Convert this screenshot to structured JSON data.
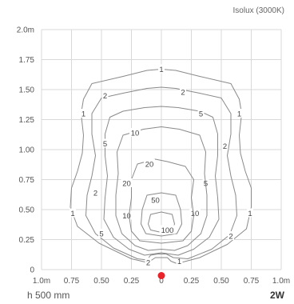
{
  "header": {
    "title": "Isolux (3000K)"
  },
  "footer": {
    "height_label": "h 500 mm",
    "power_label": "2W"
  },
  "chart_data": {
    "type": "contour",
    "title": "Isolux (3000K)",
    "x_ticks": [
      "1.0m",
      "0.75",
      "0.50",
      "0.25",
      "0",
      "0.25",
      "0.50",
      "0.75",
      "1.0m"
    ],
    "y_ticks": [
      "0",
      "0.25",
      "0.50",
      "0.75",
      "1.00",
      "1.25",
      "1.50",
      "1.75",
      "2.0m"
    ],
    "xlim": [
      -1.0,
      1.0
    ],
    "ylim": [
      0,
      2.0
    ],
    "grid": true,
    "source_point": {
      "x": 0,
      "y": -0.05,
      "color": "#e8232a"
    },
    "line_color": "#8a8a8a",
    "contours": [
      {
        "level": 1,
        "label": "1",
        "points": [
          [
            0,
            1.67
          ],
          [
            -0.12,
            1.66
          ],
          [
            -0.32,
            1.61
          ],
          [
            -0.58,
            1.55
          ],
          [
            -0.65,
            1.42
          ],
          [
            -0.67,
            1.3
          ],
          [
            -0.65,
            1.12
          ],
          [
            -0.66,
            0.97
          ],
          [
            -0.7,
            0.82
          ],
          [
            -0.75,
            0.68
          ],
          [
            -0.76,
            0.52
          ],
          [
            -0.7,
            0.36
          ],
          [
            -0.52,
            0.22
          ],
          [
            -0.25,
            0.09
          ],
          [
            -0.12,
            0.06
          ],
          [
            -0.08,
            0.08
          ],
          [
            -0.05,
            0.1
          ],
          [
            0.05,
            0.1
          ],
          [
            0.08,
            0.07
          ],
          [
            0.13,
            0.05
          ],
          [
            0.32,
            0.1
          ],
          [
            0.55,
            0.21
          ],
          [
            0.71,
            0.34
          ],
          [
            0.75,
            0.52
          ],
          [
            0.75,
            0.68
          ],
          [
            0.7,
            0.82
          ],
          [
            0.66,
            0.97
          ],
          [
            0.65,
            1.12
          ],
          [
            0.67,
            1.3
          ],
          [
            0.65,
            1.42
          ],
          [
            0.58,
            1.55
          ],
          [
            0.32,
            1.61
          ],
          [
            0.12,
            1.66
          ],
          [
            0,
            1.67
          ]
        ],
        "labels_at": [
          [
            0,
            1.67
          ],
          [
            -0.65,
            1.3
          ],
          [
            0.65,
            1.3
          ],
          [
            -0.74,
            0.47
          ],
          [
            0.74,
            0.47
          ],
          [
            0.15,
            0.07
          ]
        ]
      },
      {
        "level": 2,
        "label": "2",
        "points": [
          [
            0,
            1.52
          ],
          [
            -0.12,
            1.51
          ],
          [
            -0.32,
            1.47
          ],
          [
            -0.5,
            1.43
          ],
          [
            -0.58,
            1.3
          ],
          [
            -0.58,
            1.13
          ],
          [
            -0.55,
            0.95
          ],
          [
            -0.58,
            0.78
          ],
          [
            -0.62,
            0.62
          ],
          [
            -0.63,
            0.45
          ],
          [
            -0.55,
            0.3
          ],
          [
            -0.4,
            0.18
          ],
          [
            -0.2,
            0.09
          ],
          [
            -0.12,
            0.08
          ],
          [
            -0.09,
            0.12
          ],
          [
            -0.03,
            0.13
          ],
          [
            0.04,
            0.13
          ],
          [
            0.1,
            0.1
          ],
          [
            0.22,
            0.09
          ],
          [
            0.42,
            0.17
          ],
          [
            0.57,
            0.29
          ],
          [
            0.63,
            0.45
          ],
          [
            0.62,
            0.62
          ],
          [
            0.58,
            0.78
          ],
          [
            0.55,
            0.95
          ],
          [
            0.58,
            1.13
          ],
          [
            0.58,
            1.3
          ],
          [
            0.5,
            1.43
          ],
          [
            0.32,
            1.47
          ],
          [
            0.12,
            1.51
          ],
          [
            0,
            1.52
          ]
        ],
        "labels_at": [
          [
            -0.47,
            1.45
          ],
          [
            0.18,
            1.48
          ],
          [
            0.53,
            1.03
          ],
          [
            -0.55,
            0.64
          ],
          [
            0.58,
            0.28
          ],
          [
            -0.11,
            0.06
          ]
        ]
      },
      {
        "level": 5,
        "label": "5",
        "points": [
          [
            0,
            1.36
          ],
          [
            -0.14,
            1.35
          ],
          [
            -0.32,
            1.32
          ],
          [
            -0.43,
            1.27
          ],
          [
            -0.47,
            1.13
          ],
          [
            -0.47,
            0.95
          ],
          [
            -0.45,
            0.78
          ],
          [
            -0.47,
            0.6
          ],
          [
            -0.48,
            0.42
          ],
          [
            -0.4,
            0.27
          ],
          [
            -0.27,
            0.17
          ],
          [
            -0.14,
            0.12
          ],
          [
            0,
            0.14
          ],
          [
            0.14,
            0.12
          ],
          [
            0.27,
            0.17
          ],
          [
            0.4,
            0.27
          ],
          [
            0.48,
            0.42
          ],
          [
            0.47,
            0.6
          ],
          [
            0.45,
            0.78
          ],
          [
            0.47,
            0.95
          ],
          [
            0.47,
            1.13
          ],
          [
            0.43,
            1.27
          ],
          [
            0.32,
            1.32
          ],
          [
            0.14,
            1.35
          ],
          [
            0,
            1.36
          ]
        ],
        "labels_at": [
          [
            0.33,
            1.3
          ],
          [
            -0.47,
            1.05
          ],
          [
            0.37,
            0.72
          ],
          [
            -0.5,
            0.3
          ]
        ]
      },
      {
        "level": 10,
        "label": "10",
        "points": [
          [
            0,
            1.19
          ],
          [
            -0.15,
            1.17
          ],
          [
            -0.32,
            1.12
          ],
          [
            -0.37,
            0.98
          ],
          [
            -0.36,
            0.8
          ],
          [
            -0.38,
            0.62
          ],
          [
            -0.38,
            0.45
          ],
          [
            -0.33,
            0.3
          ],
          [
            -0.22,
            0.2
          ],
          [
            -0.11,
            0.16
          ],
          [
            0,
            0.17
          ],
          [
            0.11,
            0.16
          ],
          [
            0.22,
            0.2
          ],
          [
            0.33,
            0.3
          ],
          [
            0.38,
            0.45
          ],
          [
            0.38,
            0.62
          ],
          [
            0.36,
            0.8
          ],
          [
            0.37,
            0.98
          ],
          [
            0.32,
            1.12
          ],
          [
            0.15,
            1.17
          ],
          [
            0,
            1.19
          ]
        ],
        "labels_at": [
          [
            -0.22,
            1.14
          ],
          [
            -0.29,
            0.45
          ],
          [
            0.28,
            0.47
          ]
        ]
      },
      {
        "level": 20,
        "label": "20",
        "points": [
          [
            -0.05,
            0.92
          ],
          [
            -0.2,
            0.88
          ],
          [
            -0.25,
            0.75
          ],
          [
            -0.25,
            0.6
          ],
          [
            -0.27,
            0.45
          ],
          [
            -0.25,
            0.32
          ],
          [
            -0.18,
            0.24
          ],
          [
            0,
            0.22
          ],
          [
            0.18,
            0.24
          ],
          [
            0.25,
            0.32
          ],
          [
            0.27,
            0.45
          ],
          [
            0.25,
            0.6
          ],
          [
            0.27,
            0.75
          ],
          [
            0.2,
            0.86
          ],
          [
            0.05,
            0.9
          ],
          [
            -0.05,
            0.92
          ]
        ],
        "labels_at": [
          [
            -0.1,
            0.88
          ],
          [
            -0.29,
            0.72
          ]
        ]
      },
      {
        "level": 50,
        "label": "50",
        "points": [
          [
            0,
            0.64
          ],
          [
            -0.12,
            0.62
          ],
          [
            -0.16,
            0.5
          ],
          [
            -0.17,
            0.38
          ],
          [
            -0.13,
            0.3
          ],
          [
            0,
            0.28
          ],
          [
            0.13,
            0.3
          ],
          [
            0.17,
            0.38
          ],
          [
            0.16,
            0.5
          ],
          [
            0.12,
            0.62
          ],
          [
            0,
            0.64
          ]
        ],
        "labels_at": [
          [
            -0.05,
            0.58
          ]
        ]
      },
      {
        "level": 100,
        "label": "100",
        "points": [
          [
            0,
            0.48
          ],
          [
            -0.09,
            0.46
          ],
          [
            -0.11,
            0.38
          ],
          [
            -0.09,
            0.33
          ],
          [
            0,
            0.31
          ],
          [
            0.09,
            0.33
          ],
          [
            0.11,
            0.38
          ],
          [
            0.09,
            0.46
          ],
          [
            0,
            0.48
          ]
        ],
        "labels_at": [
          [
            0.05,
            0.33
          ]
        ]
      }
    ]
  }
}
